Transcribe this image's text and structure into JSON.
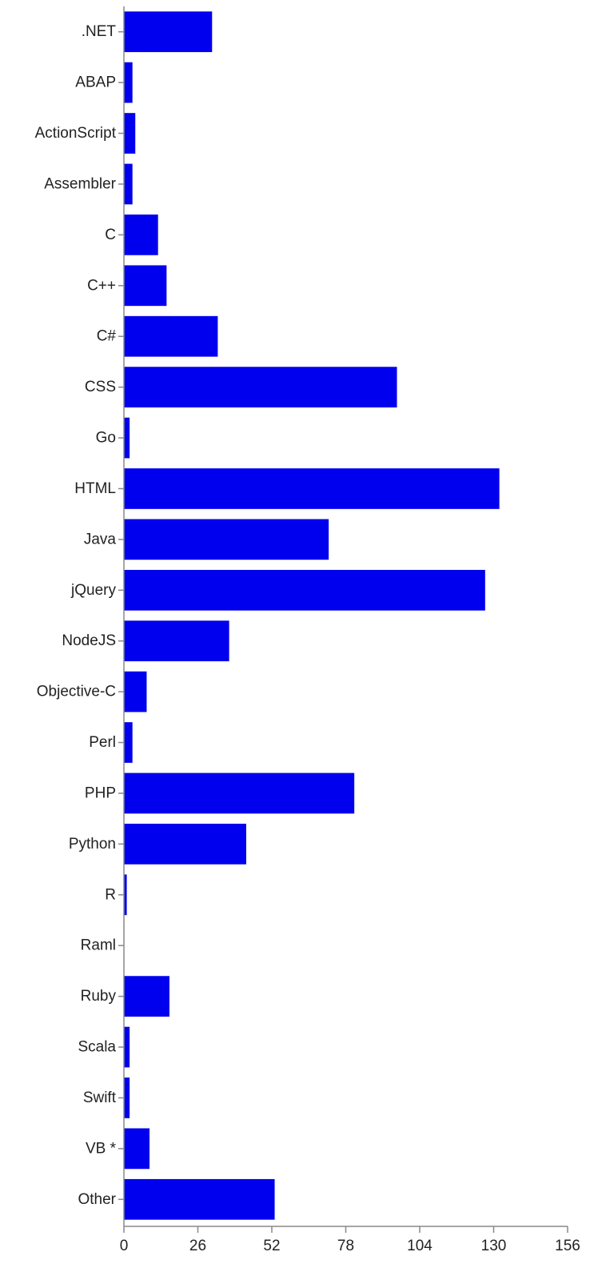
{
  "chart_data": {
    "type": "bar",
    "orientation": "horizontal",
    "title": "",
    "xlabel": "",
    "ylabel": "",
    "categories": [
      ".NET",
      "ABAP",
      "ActionScript",
      "Assembler",
      "C",
      "C++",
      "C#",
      "CSS",
      "Go",
      "HTML",
      "Java",
      "jQuery",
      "NodeJS",
      "Objective-C",
      "Perl",
      "PHP",
      "Python",
      "R",
      "Raml",
      "Ruby",
      "Scala",
      "Swift",
      "VB *",
      "Other"
    ],
    "values": [
      31,
      3,
      4,
      3,
      12,
      15,
      33,
      96,
      2,
      132,
      72,
      127,
      37,
      8,
      3,
      81,
      43,
      1,
      0,
      16,
      2,
      2,
      9,
      53
    ],
    "xlim": [
      0,
      156
    ],
    "xticks": [
      "0",
      "26",
      "52",
      "78",
      "104",
      "130",
      "156"
    ],
    "bar_color": "#0000ee",
    "grid": false,
    "legend": "none"
  }
}
